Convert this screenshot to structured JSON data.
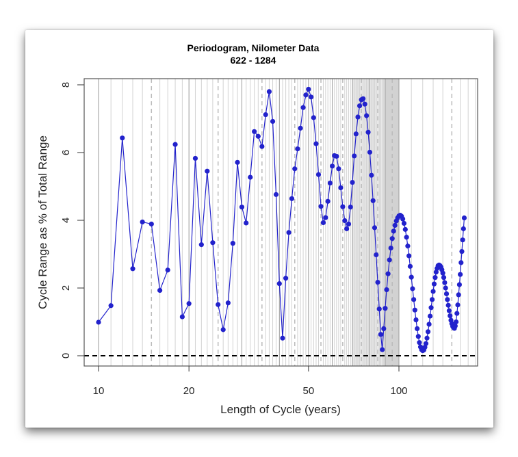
{
  "chart_data": {
    "type": "line",
    "title": "Periodogram, Nilometer Data",
    "subtitle": "622 - 1284",
    "xlabel": "Length of Cycle (years)",
    "ylabel": "Cycle Range as % of Total Range",
    "x_scale": "log",
    "xlim": [
      9.0,
      183
    ],
    "ylim": [
      -0.3,
      8.2
    ],
    "x_ticks": [
      10,
      20,
      50,
      100
    ],
    "x_tick_labels": [
      "10",
      "20",
      "50",
      "100"
    ],
    "y_ticks": [
      0,
      2,
      4,
      6,
      8
    ],
    "y_tick_labels": [
      "0",
      "2",
      "4",
      "6",
      "8"
    ],
    "reference_line": {
      "y": 0,
      "style": "dashed",
      "color": "#000000"
    },
    "grid": {
      "minor_every_below_100": 1,
      "minor_every_above_100": 10,
      "dashed_at": [
        15,
        25,
        35,
        45,
        55,
        65,
        75,
        85,
        95,
        150
      ],
      "dark_at": [
        10,
        20,
        30,
        40,
        50,
        60,
        70,
        80,
        90,
        100
      ],
      "shaded_bands": [
        [
          70,
          100
        ],
        [
          90,
          100
        ]
      ]
    },
    "series": [
      {
        "name": "periodogram",
        "color": "#2222cc",
        "x_start": 10,
        "x_step": 1,
        "values": [
          0.99,
          1.48,
          6.43,
          2.57,
          3.95,
          3.89,
          1.93,
          2.53,
          6.24,
          1.15,
          1.54,
          5.83,
          3.28,
          5.45,
          3.34,
          1.51,
          0.77,
          1.56,
          3.32,
          5.71,
          4.39,
          3.92,
          5.27,
          6.62,
          6.48,
          6.18,
          7.12,
          7.8,
          6.92,
          4.76,
          2.13,
          0.52,
          2.29,
          3.64,
          4.64,
          5.52,
          6.11,
          6.72,
          7.33,
          7.7,
          7.87,
          7.64,
          7.03,
          6.26,
          5.35,
          4.41,
          3.93,
          4.08,
          4.56,
          5.1,
          5.6,
          5.91,
          5.89,
          5.52,
          4.96,
          4.4,
          3.99,
          3.75,
          3.89,
          4.39,
          5.12,
          5.9,
          6.55,
          7.05,
          7.38,
          7.56,
          7.59,
          7.43,
          7.09,
          6.6,
          6.01,
          5.33,
          4.58,
          3.78,
          2.98,
          2.17,
          1.38,
          0.63,
          0.18,
          0.8,
          1.4,
          1.95,
          2.42,
          2.83,
          3.18,
          3.46,
          3.68,
          3.85,
          3.98,
          4.07,
          4.13,
          4.15,
          4.12,
          4.04,
          3.91,
          3.73,
          3.5,
          3.24,
          2.95,
          2.64,
          2.32,
          1.98,
          1.66,
          1.35,
          1.06,
          0.8,
          0.57,
          0.39,
          0.26,
          0.18,
          0.15,
          0.17,
          0.25,
          0.36,
          0.52,
          0.71,
          0.93,
          1.17,
          1.42,
          1.66,
          1.9,
          2.12,
          2.31,
          2.47,
          2.58,
          2.66,
          2.68,
          2.66,
          2.62,
          2.54,
          2.44,
          2.31,
          2.16,
          2.0,
          1.83,
          1.66,
          1.49,
          1.33,
          1.18,
          1.05,
          0.95,
          0.87,
          0.83,
          0.81,
          0.88,
          1.0,
          1.25,
          1.5,
          1.8,
          2.1,
          2.4,
          2.75,
          3.08,
          3.42,
          3.75,
          4.07
        ]
      }
    ]
  }
}
